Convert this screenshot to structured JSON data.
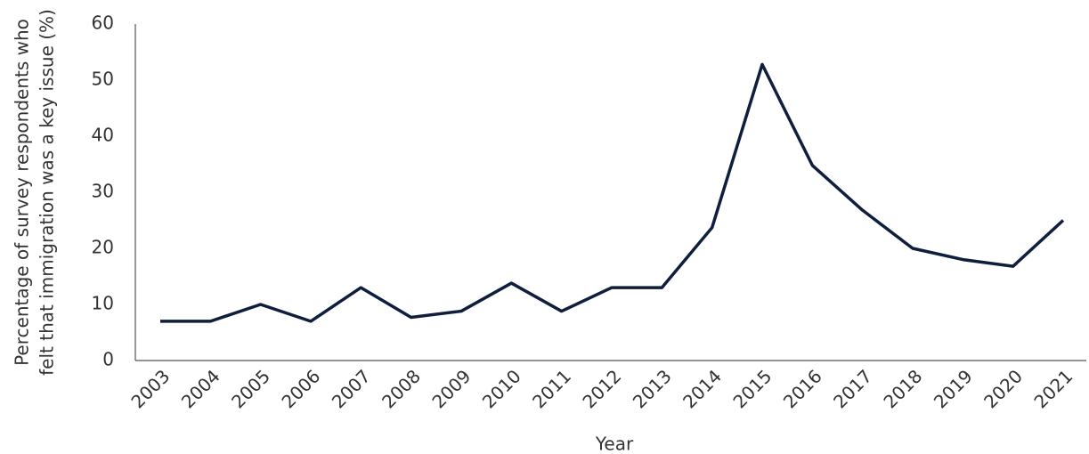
{
  "chart_data": {
    "type": "line",
    "xlabel": "Year",
    "ylabel": [
      "Percentage of survey respondents who",
      "felt that immigration was a key issue (%)"
    ],
    "categories": [
      "2003",
      "2004",
      "2005",
      "2006",
      "2007",
      "2008",
      "2009",
      "2010",
      "2011",
      "2012",
      "2013",
      "2014",
      "2015",
      "2016",
      "2017",
      "2018",
      "2019",
      "2020",
      "2021"
    ],
    "series": [
      {
        "color": "#0f1e3c",
        "values": [
          7,
          7,
          10,
          7,
          13,
          7.7,
          8.8,
          13.8,
          8.8,
          13,
          13,
          23.7,
          52.8,
          34.8,
          26.8,
          20,
          18,
          16.8,
          25
        ]
      }
    ],
    "ylim": [
      0,
      60
    ],
    "yticks": [
      0,
      10,
      20,
      30,
      40,
      50,
      60
    ],
    "grid": false
  }
}
